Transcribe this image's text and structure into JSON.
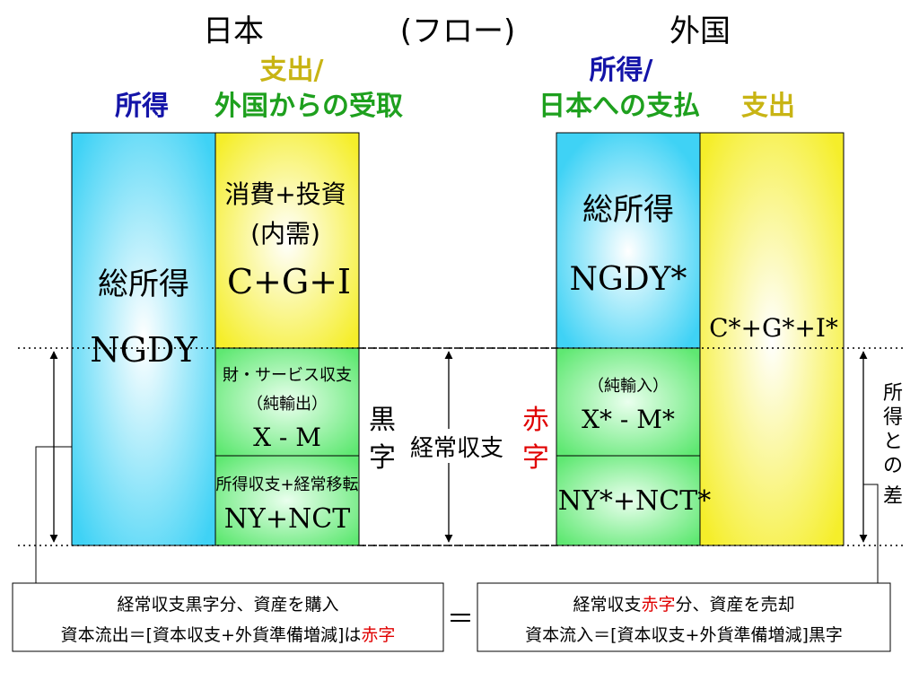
{
  "headings": {
    "japan": "日本",
    "flow": "(フロー)",
    "foreign": "外国"
  },
  "japan_columns": {
    "income_label": "所得",
    "spending_label_1": "支出/",
    "spending_label_2": "外国からの受取"
  },
  "foreign_columns": {
    "income_label_1": "所得/",
    "income_label_2": "日本への支払",
    "spending_label": "支出"
  },
  "japan_blocks": {
    "total_income": "総所得",
    "total_income_symbol": "NGDY",
    "domestic_demand_1": "消費+投資",
    "domestic_demand_2": "(内需)",
    "domestic_demand_symbol": "C+G+I",
    "goods_services": "財・サービス収支",
    "net_exports": "（純輸出）",
    "net_exports_symbol": "X - M",
    "income_transfers": "所得収支+経常移転",
    "income_transfers_symbol": "NY+NCT"
  },
  "foreign_blocks": {
    "total_income": "総所得",
    "total_income_symbol": "NGDY*",
    "net_imports": "（純輸入）",
    "net_imports_symbol": "X* - M*",
    "income_transfers_symbol": "NY*+NCT*",
    "spending_symbol": "C*+G*+I*"
  },
  "center": {
    "surplus_1": "黒",
    "surplus_2": "字",
    "current_account": "経常収支",
    "deficit_1": "赤",
    "deficit_2": "字"
  },
  "side_note": {
    "chars": [
      "所",
      "得",
      "と",
      "の",
      "差"
    ]
  },
  "bottom_left_box": {
    "line1": "経常収支黒字分、資産を購入",
    "line2_prefix": "資本流出＝[資本収支+外貨準備増減]は",
    "line2_highlight": "赤字"
  },
  "equals": "＝",
  "bottom_right_box": {
    "line1_prefix": "経常収支",
    "line1_highlight": "赤字",
    "line1_suffix": "分、資産を売却",
    "line2": "資本流入＝[資本収支+外貨準備増減]黒字"
  },
  "colors": {
    "income_heading": "#1414a8",
    "spending_heading": "#c8b414",
    "green_heading": "#1ea01e",
    "red_text": "#e00000",
    "cyan_block": "#4ad6f5",
    "yellow_block": "#f5ef30",
    "green_block": "#66ee77"
  }
}
